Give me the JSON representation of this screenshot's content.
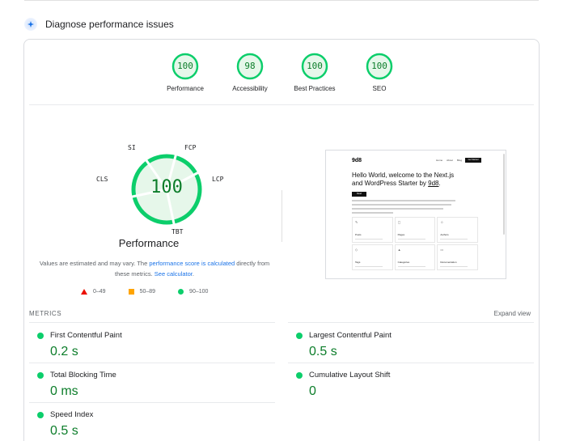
{
  "section": {
    "title": "Diagnose performance issues",
    "icon": "sparkle-icon"
  },
  "categories": [
    {
      "label": "Performance",
      "score": "100"
    },
    {
      "label": "Accessibility",
      "score": "98"
    },
    {
      "label": "Best Practices",
      "score": "100"
    },
    {
      "label": "SEO",
      "score": "100"
    }
  ],
  "performance": {
    "score": "100",
    "title": "Performance",
    "metric_labels": {
      "si": "SI",
      "fcp": "FCP",
      "lcp": "LCP",
      "tbt": "TBT",
      "cls": "CLS"
    },
    "note_pre": "Values are estimated and may vary. The ",
    "note_link1": "performance score is calculated",
    "note_mid": " directly from these metrics. ",
    "note_link2": "See calculator",
    "note_end": "."
  },
  "legend": {
    "fail": "0–49",
    "average": "50–89",
    "pass": "90–100"
  },
  "screenshot": {
    "logo": "9d8",
    "nav_links": [
      "Home",
      "About",
      "Blog"
    ],
    "cta": "Get Started",
    "hero_line1": "Hello World, welcome to the Next.js",
    "hero_line2": "and WordPress Starter by ",
    "hero_link": "9d8",
    "hero_end": ".",
    "badge": "Read",
    "cards": [
      "Posts",
      "Pages",
      "Authors",
      "Tags",
      "Categories",
      "Documentation"
    ]
  },
  "metrics": {
    "heading": "METRICS",
    "expand": "Expand view",
    "items": [
      {
        "name": "First Contentful Paint",
        "value": "0.2 s"
      },
      {
        "name": "Largest Contentful Paint",
        "value": "0.5 s"
      },
      {
        "name": "Total Blocking Time",
        "value": "0 ms"
      },
      {
        "name": "Cumulative Layout Shift",
        "value": "0"
      },
      {
        "name": "Speed Index",
        "value": "0.5 s"
      }
    ]
  },
  "colors": {
    "pass": "#0cce6b",
    "pass_text": "#0c7d2a",
    "average": "#ffa400",
    "fail": "#eb0f00",
    "link": "#1a73e8"
  }
}
